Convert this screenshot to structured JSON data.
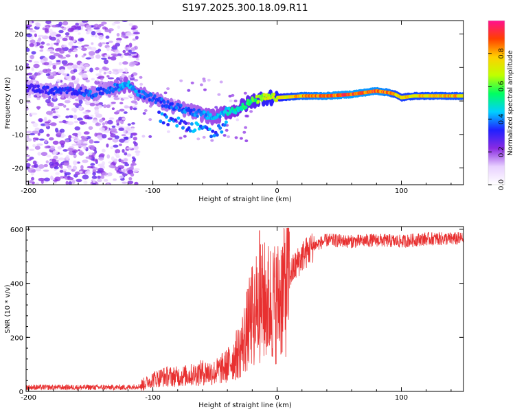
{
  "title": "S197.2025.300.18.09.R11",
  "chart_data": [
    {
      "type": "heatmap",
      "xlabel": "Height of straight line (km)",
      "ylabel": "Frequency (Hz)",
      "xlim": [
        -202,
        150
      ],
      "ylim": [
        -25,
        24
      ],
      "xticks": [
        -200,
        -100,
        0,
        100
      ],
      "yticks": [
        20,
        10,
        0,
        -10,
        -20
      ],
      "xtick_labels": [
        "-200",
        "-100",
        "0",
        "100"
      ],
      "ytick_labels": [
        "20",
        "10",
        "0",
        "-10",
        "-20"
      ],
      "colorbar": {
        "label": "Normalized spectral amplitude",
        "range": [
          0,
          1
        ],
        "ticks": [
          "0.0",
          "0.2",
          "0.4",
          "0.6",
          "0.8"
        ],
        "colors": [
          "#ffffff",
          "#e8d0ff",
          "#8a2be2",
          "#2020ff",
          "#00d0ff",
          "#00ff60",
          "#c0ff00",
          "#ffd000",
          "#ff4000",
          "#ff1090"
        ]
      },
      "ridge": {
        "x": [
          -200,
          -180,
          -160,
          -150,
          -140,
          -120,
          -110,
          -100,
          -90,
          -80,
          -70,
          -60,
          -50,
          -45,
          -40,
          -35,
          -30,
          -20,
          -10,
          0,
          20,
          40,
          60,
          80,
          90,
          95,
          100,
          110,
          130,
          150
        ],
        "f": [
          4,
          3,
          3,
          2,
          3,
          5,
          2,
          1,
          -1,
          -2,
          -3,
          -4,
          -5,
          -4,
          -3,
          -3,
          -2,
          0,
          1,
          1,
          1.5,
          1.5,
          2,
          3,
          2.5,
          2,
          1,
          1.5,
          1.5,
          1.5
        ],
        "amplitude": [
          0.3,
          0.35,
          0.35,
          0.4,
          0.35,
          0.45,
          0.4,
          0.4,
          0.38,
          0.4,
          0.4,
          0.42,
          0.45,
          0.45,
          0.5,
          0.5,
          0.55,
          0.6,
          0.7,
          0.72,
          0.85,
          0.9,
          0.92,
          0.9,
          0.88,
          0.8,
          0.78,
          0.8,
          0.82,
          0.82
        ]
      }
    },
    {
      "type": "line",
      "xlabel": "Height of straight line (km)",
      "ylabel": "SNR (10 * v/v)",
      "xlim": [
        -202,
        150
      ],
      "ylim": [
        0,
        610
      ],
      "xticks": [
        -200,
        -100,
        0,
        100
      ],
      "yticks": [
        0,
        200,
        400,
        600
      ],
      "xtick_labels": [
        "-200",
        "-100",
        "0",
        "100"
      ],
      "ytick_labels": [
        "0",
        "200",
        "400",
        "600"
      ],
      "series": [
        {
          "name": "SNR",
          "color": "#e83030",
          "x": [
            -202,
            -180,
            -160,
            -140,
            -120,
            -110,
            -100,
            -90,
            -80,
            -70,
            -60,
            -50,
            -40,
            -30,
            -20,
            -15,
            -10,
            0,
            10,
            20,
            30,
            40,
            60,
            80,
            100,
            120,
            150
          ],
          "y": [
            15,
            15,
            15,
            15,
            15,
            20,
            45,
            55,
            55,
            60,
            70,
            70,
            95,
            150,
            280,
            320,
            330,
            330,
            430,
            500,
            540,
            560,
            555,
            560,
            555,
            565,
            565
          ]
        }
      ]
    }
  ]
}
